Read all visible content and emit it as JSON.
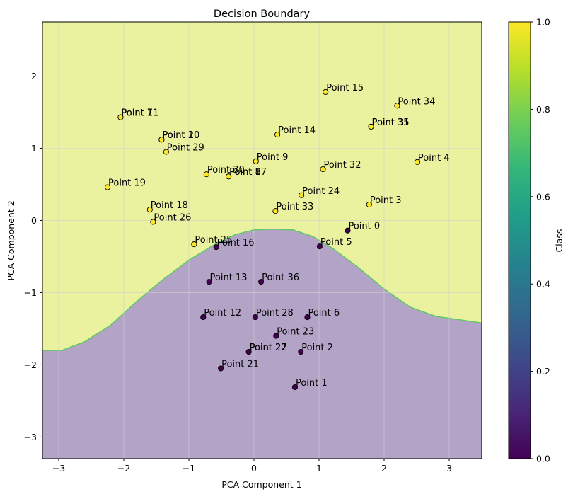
{
  "chart_data": {
    "type": "scatter",
    "title": "Decision Boundary",
    "xlabel": "PCA Component 1",
    "ylabel": "PCA Component 2",
    "xlim": [
      -3.25,
      3.5
    ],
    "ylim": [
      -3.3,
      2.75
    ],
    "xticks": [
      -3,
      -2,
      -1,
      0,
      1,
      2,
      3
    ],
    "yticks": [
      -3,
      -2,
      -1,
      0,
      1,
      2
    ],
    "grid": true,
    "colors": {
      "class0_region": "#b3a4c7",
      "class1_region": "#eaf19f",
      "class0_point": "#440154",
      "class1_point": "#fde725",
      "boundary": "#5ec962",
      "grid": "#d0d0d0"
    },
    "decision_boundary": [
      [
        -3.25,
        -1.8
      ],
      [
        -2.95,
        -1.8
      ],
      [
        -2.6,
        -1.68
      ],
      [
        -2.2,
        -1.45
      ],
      [
        -1.8,
        -1.12
      ],
      [
        -1.4,
        -0.82
      ],
      [
        -1.0,
        -0.55
      ],
      [
        -0.6,
        -0.33
      ],
      [
        -0.3,
        -0.2
      ],
      [
        0.0,
        -0.13
      ],
      [
        0.3,
        -0.12
      ],
      [
        0.6,
        -0.13
      ],
      [
        0.9,
        -0.22
      ],
      [
        1.2,
        -0.38
      ],
      [
        1.6,
        -0.65
      ],
      [
        2.0,
        -0.95
      ],
      [
        2.4,
        -1.2
      ],
      [
        2.8,
        -1.33
      ],
      [
        3.2,
        -1.38
      ],
      [
        3.5,
        -1.42
      ]
    ],
    "points": [
      {
        "label": "Point 0",
        "x": 1.44,
        "y": -0.14,
        "class": 0
      },
      {
        "label": "Point 1",
        "x": 0.63,
        "y": -2.31,
        "class": 0
      },
      {
        "label": "Point 2",
        "x": 0.72,
        "y": -1.82,
        "class": 0
      },
      {
        "label": "Point 3",
        "x": 1.77,
        "y": 0.22,
        "class": 1
      },
      {
        "label": "Point 4",
        "x": 2.51,
        "y": 0.81,
        "class": 1
      },
      {
        "label": "Point 5",
        "x": 1.01,
        "y": -0.36,
        "class": 0
      },
      {
        "label": "Point 6",
        "x": 0.82,
        "y": -1.34,
        "class": 0
      },
      {
        "label": "Point 7",
        "x": -2.05,
        "y": 1.43,
        "class": 1
      },
      {
        "label": "Point 8",
        "x": -0.39,
        "y": 0.61,
        "class": 1
      },
      {
        "label": "Point 9",
        "x": 0.03,
        "y": 0.82,
        "class": 1
      },
      {
        "label": "Point 10",
        "x": -1.42,
        "y": 1.12,
        "class": 1
      },
      {
        "label": "Point 11",
        "x": -2.05,
        "y": 1.43,
        "class": 1
      },
      {
        "label": "Point 12",
        "x": -0.78,
        "y": -1.34,
        "class": 0
      },
      {
        "label": "Point 13",
        "x": -0.69,
        "y": -0.85,
        "class": 0
      },
      {
        "label": "Point 14",
        "x": 0.36,
        "y": 1.19,
        "class": 1
      },
      {
        "label": "Point 15",
        "x": 1.1,
        "y": 1.78,
        "class": 1
      },
      {
        "label": "Point 16",
        "x": -0.58,
        "y": -0.37,
        "class": 0
      },
      {
        "label": "Point 17",
        "x": -0.39,
        "y": 0.61,
        "class": 1
      },
      {
        "label": "Point 18",
        "x": -1.6,
        "y": 0.15,
        "class": 1
      },
      {
        "label": "Point 19",
        "x": -2.25,
        "y": 0.46,
        "class": 1
      },
      {
        "label": "Point 20",
        "x": -1.42,
        "y": 1.12,
        "class": 1
      },
      {
        "label": "Point 21",
        "x": -0.51,
        "y": -2.05,
        "class": 0
      },
      {
        "label": "Point 22",
        "x": -0.08,
        "y": -1.82,
        "class": 0
      },
      {
        "label": "Point 23",
        "x": 0.34,
        "y": -1.6,
        "class": 0
      },
      {
        "label": "Point 24",
        "x": 0.73,
        "y": 0.35,
        "class": 1
      },
      {
        "label": "Point 25",
        "x": -0.92,
        "y": -0.33,
        "class": 1
      },
      {
        "label": "Point 26",
        "x": -1.55,
        "y": -0.02,
        "class": 1
      },
      {
        "label": "Point 27",
        "x": -0.08,
        "y": -1.82,
        "class": 0
      },
      {
        "label": "Point 28",
        "x": 0.02,
        "y": -1.34,
        "class": 0
      },
      {
        "label": "Point 29",
        "x": -1.35,
        "y": 0.95,
        "class": 1
      },
      {
        "label": "Point 30",
        "x": -0.73,
        "y": 0.64,
        "class": 1
      },
      {
        "label": "Point 31",
        "x": 1.8,
        "y": 1.3,
        "class": 1
      },
      {
        "label": "Point 32",
        "x": 1.06,
        "y": 0.71,
        "class": 1
      },
      {
        "label": "Point 33",
        "x": 0.33,
        "y": 0.13,
        "class": 1
      },
      {
        "label": "Point 34",
        "x": 2.2,
        "y": 1.59,
        "class": 1
      },
      {
        "label": "Point 35",
        "x": 1.8,
        "y": 1.3,
        "class": 1
      },
      {
        "label": "Point 36",
        "x": 0.11,
        "y": -0.85,
        "class": 0
      }
    ],
    "colorbar": {
      "label": "Class",
      "range": [
        0,
        1
      ],
      "ticks": [
        "0.0",
        "0.2",
        "0.4",
        "0.6",
        "0.8",
        "1.0"
      ],
      "stops": [
        "#440154",
        "#482878",
        "#3e4989",
        "#31688e",
        "#26828e",
        "#1f9e89",
        "#35b779",
        "#6ece58",
        "#b5de2b",
        "#fde725"
      ]
    }
  }
}
